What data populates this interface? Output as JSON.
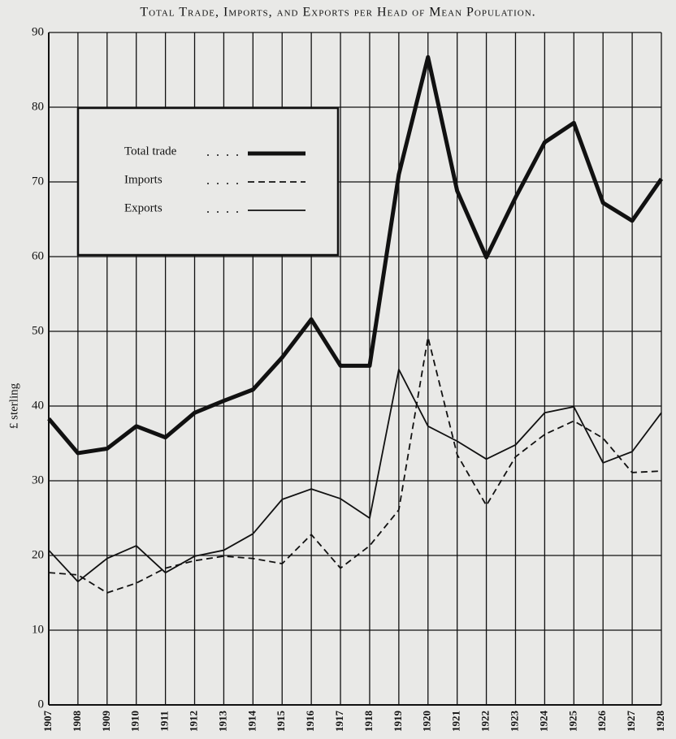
{
  "chart_data": {
    "type": "line",
    "title": "Total Trade, Imports, and Exports per Head of Mean Population.",
    "y_label": "£ sterling",
    "categories": [
      "1907",
      "1908",
      "1909",
      "1910",
      "1911",
      "1912",
      "1913",
      "1914",
      "1915",
      "1916",
      "1917",
      "1918",
      "1919",
      "1920",
      "1921",
      "1922",
      "1923",
      "1924",
      "1925",
      "1926",
      "1927",
      "1928"
    ],
    "series": [
      {
        "name": "Total trade",
        "color": "#111111",
        "style": "thick",
        "values": [
          38.3,
          33.7,
          34.3,
          37.3,
          35.8,
          39.1,
          40.7,
          42.2,
          46.5,
          51.6,
          45.4,
          45.4,
          71,
          86.7,
          68.8,
          59.9,
          67.9,
          75.3,
          77.9,
          67.2,
          64.8,
          70.4
        ]
      },
      {
        "name": "Imports",
        "color": "#111111",
        "style": "dashed",
        "values": [
          17.7,
          17.4,
          15,
          16.3,
          18.3,
          19.3,
          19.9,
          19.6,
          18.9,
          22.8,
          18.3,
          21.3,
          26.1,
          49.2,
          33.5,
          26.7,
          33.2,
          36.2,
          38,
          35.7,
          31.1,
          31.3
        ]
      },
      {
        "name": "Exports",
        "color": "#111111",
        "style": "thin",
        "values": [
          20.7,
          16.5,
          19.6,
          21.3,
          17.7,
          19.9,
          20.7,
          22.9,
          27.5,
          28.9,
          27.6,
          25,
          44.9,
          37.3,
          35.3,
          32.9,
          34.8,
          39.1,
          39.9,
          32.4,
          33.9,
          39.1
        ]
      }
    ],
    "ylim": [
      0,
      90
    ],
    "yticks": [
      0,
      10,
      20,
      30,
      40,
      50,
      60,
      70,
      80,
      90
    ],
    "grid": true,
    "legend": "upper left"
  }
}
